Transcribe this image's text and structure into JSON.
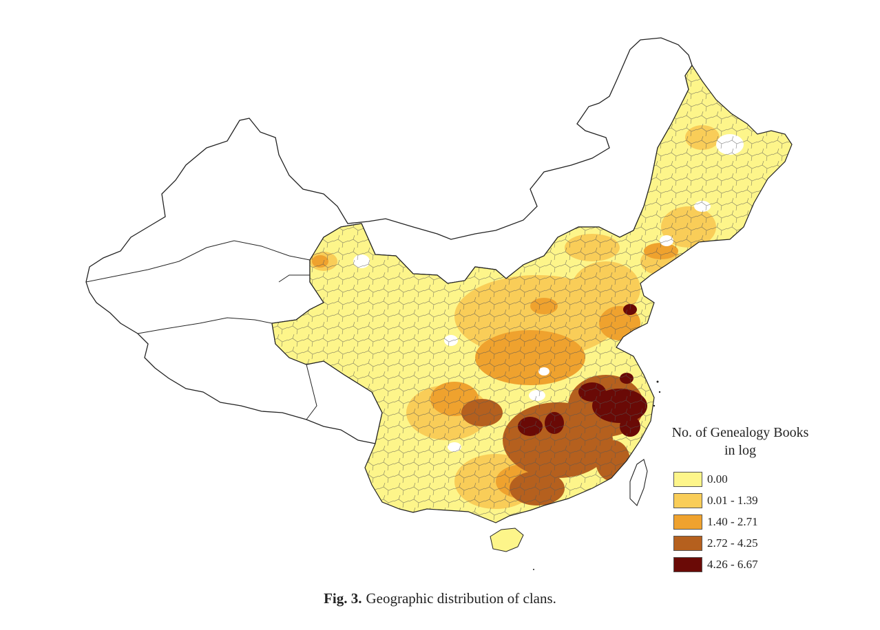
{
  "legend": {
    "title_line1": "No. of Genealogy Books",
    "title_line2": "in log",
    "items": [
      {
        "label": "0.00",
        "color": "#fdf58a"
      },
      {
        "label": "0.01 - 1.39",
        "color": "#f9cd58"
      },
      {
        "label": "1.40 - 2.71",
        "color": "#efa22e"
      },
      {
        "label": "2.72 - 4.25",
        "color": "#b5601e"
      },
      {
        "label": "4.26 - 6.67",
        "color": "#6a0a06"
      }
    ]
  },
  "caption": {
    "label": "Fig. 3.",
    "text": "Geographic distribution of clans."
  },
  "colors": {
    "outline": "#333333",
    "no_data": "#ffffff"
  }
}
